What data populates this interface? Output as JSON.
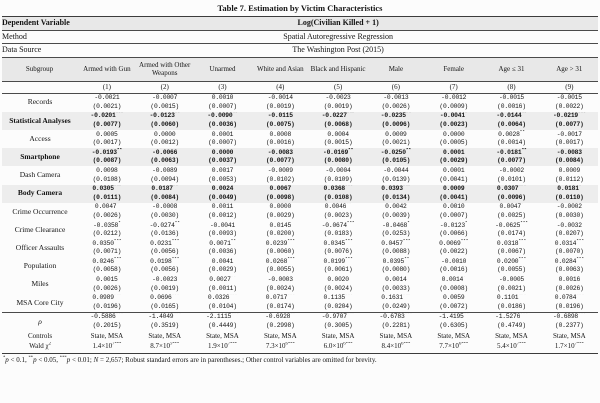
{
  "title": "Table 7. Estimation by Victim Characteristics",
  "meta_rows": [
    {
      "label": "Dependent Variable",
      "value": "Log(Civilian Killed + 1)",
      "bold": true,
      "shaded": true
    },
    {
      "label": "Method",
      "value": "Spatial Autoregressive Regression",
      "bold": false,
      "shaded": false
    },
    {
      "label": "Data Source",
      "value": "The Washington Post (2015)",
      "bold": false,
      "shaded": false
    }
  ],
  "subgroup_label": "Subgroup",
  "subgroups": [
    "Armed with Gun",
    "Armed with Other Weapons",
    "Unarmed",
    "White and Asian",
    "Black and Hispanic",
    "Male",
    "Female",
    "Age ≤ 31",
    "Age > 31"
  ],
  "column_numbers": [
    "(1)",
    "(2)",
    "(3)",
    "(4)",
    "(5)",
    "(6)",
    "(7)",
    "(8)",
    "(9)"
  ],
  "rows": [
    {
      "label": "Records",
      "est": [
        "-0.0021",
        "-0.0007",
        "0.0010",
        "-0.0014",
        "-0.0023",
        "-0.0013",
        "-0.0012",
        "-0.0015",
        "-0.0015"
      ],
      "se": [
        "0.0021",
        "0.0015",
        "0.0007",
        "0.0019",
        "0.0019",
        "0.0026",
        "0.0009",
        "0.0016",
        "0.0022"
      ]
    },
    {
      "label": "Statistical Analyses",
      "bold": true,
      "shaded": true,
      "est": [
        "-0.0201***",
        "-0.0123**",
        "-0.0090**",
        "-0.0115",
        "-0.0227***",
        "-0.0235**",
        "-0.0041*",
        "-0.0144**",
        "-0.0219***"
      ],
      "se": [
        "0.0077",
        "0.0060",
        "0.0036",
        "0.0075",
        "0.0068",
        "0.0096",
        "0.0023",
        "0.0064",
        "0.0077"
      ]
    },
    {
      "label": "Access",
      "est": [
        "0.0005",
        "0.0000",
        "0.0001",
        "0.0008",
        "0.0004",
        "0.0009",
        "0.0000",
        "0.0028**",
        "-0.0017"
      ],
      "se": [
        "0.0017",
        "0.0012",
        "0.0007",
        "0.0016",
        "0.0015",
        "0.0021",
        "0.0005",
        "0.0014",
        "0.0017"
      ]
    },
    {
      "label": "Smartphone",
      "bold": true,
      "shaded": true,
      "est": [
        "-0.0193**",
        "-0.0066",
        "0.0000",
        "-0.0083",
        "-0.0169**",
        "-0.0250**",
        "0.0001",
        "-0.0181**",
        "-0.0083"
      ],
      "se": [
        "0.0087",
        "0.0063",
        "0.0037",
        "0.0077",
        "0.0080",
        "0.0105",
        "0.0029",
        "0.0077",
        "0.0084"
      ]
    },
    {
      "label": "Dash Camera",
      "est": [
        "0.0098",
        "-0.0089",
        "0.0017",
        "-0.0009",
        "-0.0004",
        "-0.0044",
        "0.0001",
        "-0.0002",
        "0.0009"
      ],
      "se": [
        "0.0108",
        "0.0094",
        "0.0053",
        "0.0102",
        "0.0109",
        "0.0139",
        "0.0041",
        "0.0101",
        "0.0112"
      ]
    },
    {
      "label": "Body Camera",
      "bold": true,
      "shaded": true,
      "est": [
        "0.0305***",
        "0.0187**",
        "0.0024",
        "0.0067",
        "0.0368***",
        "0.0393***",
        "0.0009",
        "0.0307***",
        "0.0181*"
      ],
      "se": [
        "0.0111",
        "0.0084",
        "0.0049",
        "0.0098",
        "0.0108",
        "0.0134",
        "0.0041",
        "0.0096",
        "0.0110"
      ]
    },
    {
      "label": "Crime Occurrence",
      "est": [
        "0.0047*",
        "-0.0008",
        "0.0011",
        "0.0000",
        "0.0046**",
        "0.0042",
        "0.0010",
        "0.0047*",
        "-0.0002"
      ],
      "se": [
        "0.0026",
        "0.0030",
        "0.0012",
        "0.0029",
        "0.0023",
        "0.0039",
        "0.0007",
        "0.0025",
        "0.0030"
      ]
    },
    {
      "label": "Crime Clearance",
      "est": [
        "-0.0358*",
        "-0.0274**",
        "-0.0041",
        "0.0145",
        "-0.0674***",
        "-0.0468*",
        "-0.0123*",
        "-0.0625***",
        "-0.0032"
      ],
      "se": [
        "0.0212",
        "0.0136",
        "0.0093",
        "0.0200",
        "0.0183",
        "0.0253",
        "0.0066",
        "0.0174",
        "0.0207"
      ]
    },
    {
      "label": "Officer Assaults",
      "est": [
        "0.0350***",
        "0.0231***",
        "0.0071**",
        "0.0239***",
        "0.0345***",
        "0.0457***",
        "0.0069***",
        "0.0318***",
        "0.0314***"
      ],
      "se": [
        "0.0071",
        "0.0056",
        "0.0036",
        "0.0060",
        "0.0076",
        "0.0088",
        "0.0022",
        "0.0067",
        "0.0070"
      ]
    },
    {
      "label": "Population",
      "est": [
        "0.0246***",
        "0.0198***",
        "0.0041",
        "0.0268***",
        "0.0199***",
        "0.0395**",
        "-0.0010",
        "0.0200***",
        "0.0284***"
      ],
      "se": [
        "0.0058",
        "0.0056",
        "0.0029",
        "0.0055",
        "0.0061",
        "0.0080",
        "0.0016",
        "0.0055",
        "0.0063"
      ]
    },
    {
      "label": "Miles",
      "est": [
        "0.0015",
        "-0.0023",
        "0.0027**",
        "-0.0003",
        "0.0020",
        "0.0014",
        "0.0014*",
        "-0.0005",
        "0.0016"
      ],
      "se": [
        "0.0026",
        "0.0019",
        "0.0011",
        "0.0024",
        "0.0024",
        "0.0033",
        "0.0008",
        "0.0021",
        "0.0026"
      ]
    },
    {
      "label": "MSA Core City",
      "est": [
        "0.0989***",
        "0.0696***",
        "0.0326***",
        "0.0717***",
        "0.1135***",
        "0.1631***",
        "0.0059",
        "0.1101***",
        "0.0784***"
      ],
      "se": [
        "0.0196",
        "0.0165",
        "0.0104",
        "0.0174",
        "0.0204",
        "0.0249",
        "0.0072",
        "0.0186",
        "0.0196"
      ]
    },
    {
      "label": "ρ",
      "italic": true,
      "topline": true,
      "est": [
        "-0.5886***",
        "-1.4049***",
        "-2.1115***",
        "-0.6928**",
        "-0.9707***",
        "-0.6783***",
        "-1.4195**",
        "-1.5276***",
        "-0.6898***"
      ],
      "se": [
        "0.2015",
        "0.3519",
        "0.4449",
        "0.2998",
        "0.3005",
        "0.2281",
        "0.6305",
        "0.4749",
        "0.2377"
      ]
    }
  ],
  "controls_row": {
    "label": "Controls",
    "value": "State, MSA"
  },
  "wald_row": {
    "label_base": "Wald χ",
    "label_sup": "2",
    "values": [
      {
        "b": "1.4×10",
        "e": "7",
        "s": "***"
      },
      {
        "b": "8.7×10",
        "e": "5",
        "s": "***"
      },
      {
        "b": "1.9×10",
        "e": "7",
        "s": "***"
      },
      {
        "b": "7.3×10",
        "e": "6",
        "s": "***"
      },
      {
        "b": "6.0×10",
        "e": "6",
        "s": "***"
      },
      {
        "b": "8.4×10",
        "e": "6",
        "s": "***"
      },
      {
        "b": "7.7×10",
        "e": "6",
        "s": "***"
      },
      {
        "b": "5.4×10",
        "e": "7",
        "s": "***"
      },
      {
        "b": "1.7×10",
        "e": "7",
        "s": "***"
      }
    ]
  },
  "footnote_parts": [
    {
      "t": "*",
      "s": "sup"
    },
    {
      "t": "p",
      "s": "i"
    },
    {
      "t": " < 0.1, "
    },
    {
      "t": "**",
      "s": "sup"
    },
    {
      "t": "p",
      "s": "i"
    },
    {
      "t": " < 0.05, "
    },
    {
      "t": "***",
      "s": "sup"
    },
    {
      "t": "p",
      "s": "i"
    },
    {
      "t": " < 0.01; "
    },
    {
      "t": "N",
      "s": "i"
    },
    {
      "t": " = 2,657; Robust standard errors are in parentheses.; Other control variables are omitted for brevity."
    }
  ]
}
